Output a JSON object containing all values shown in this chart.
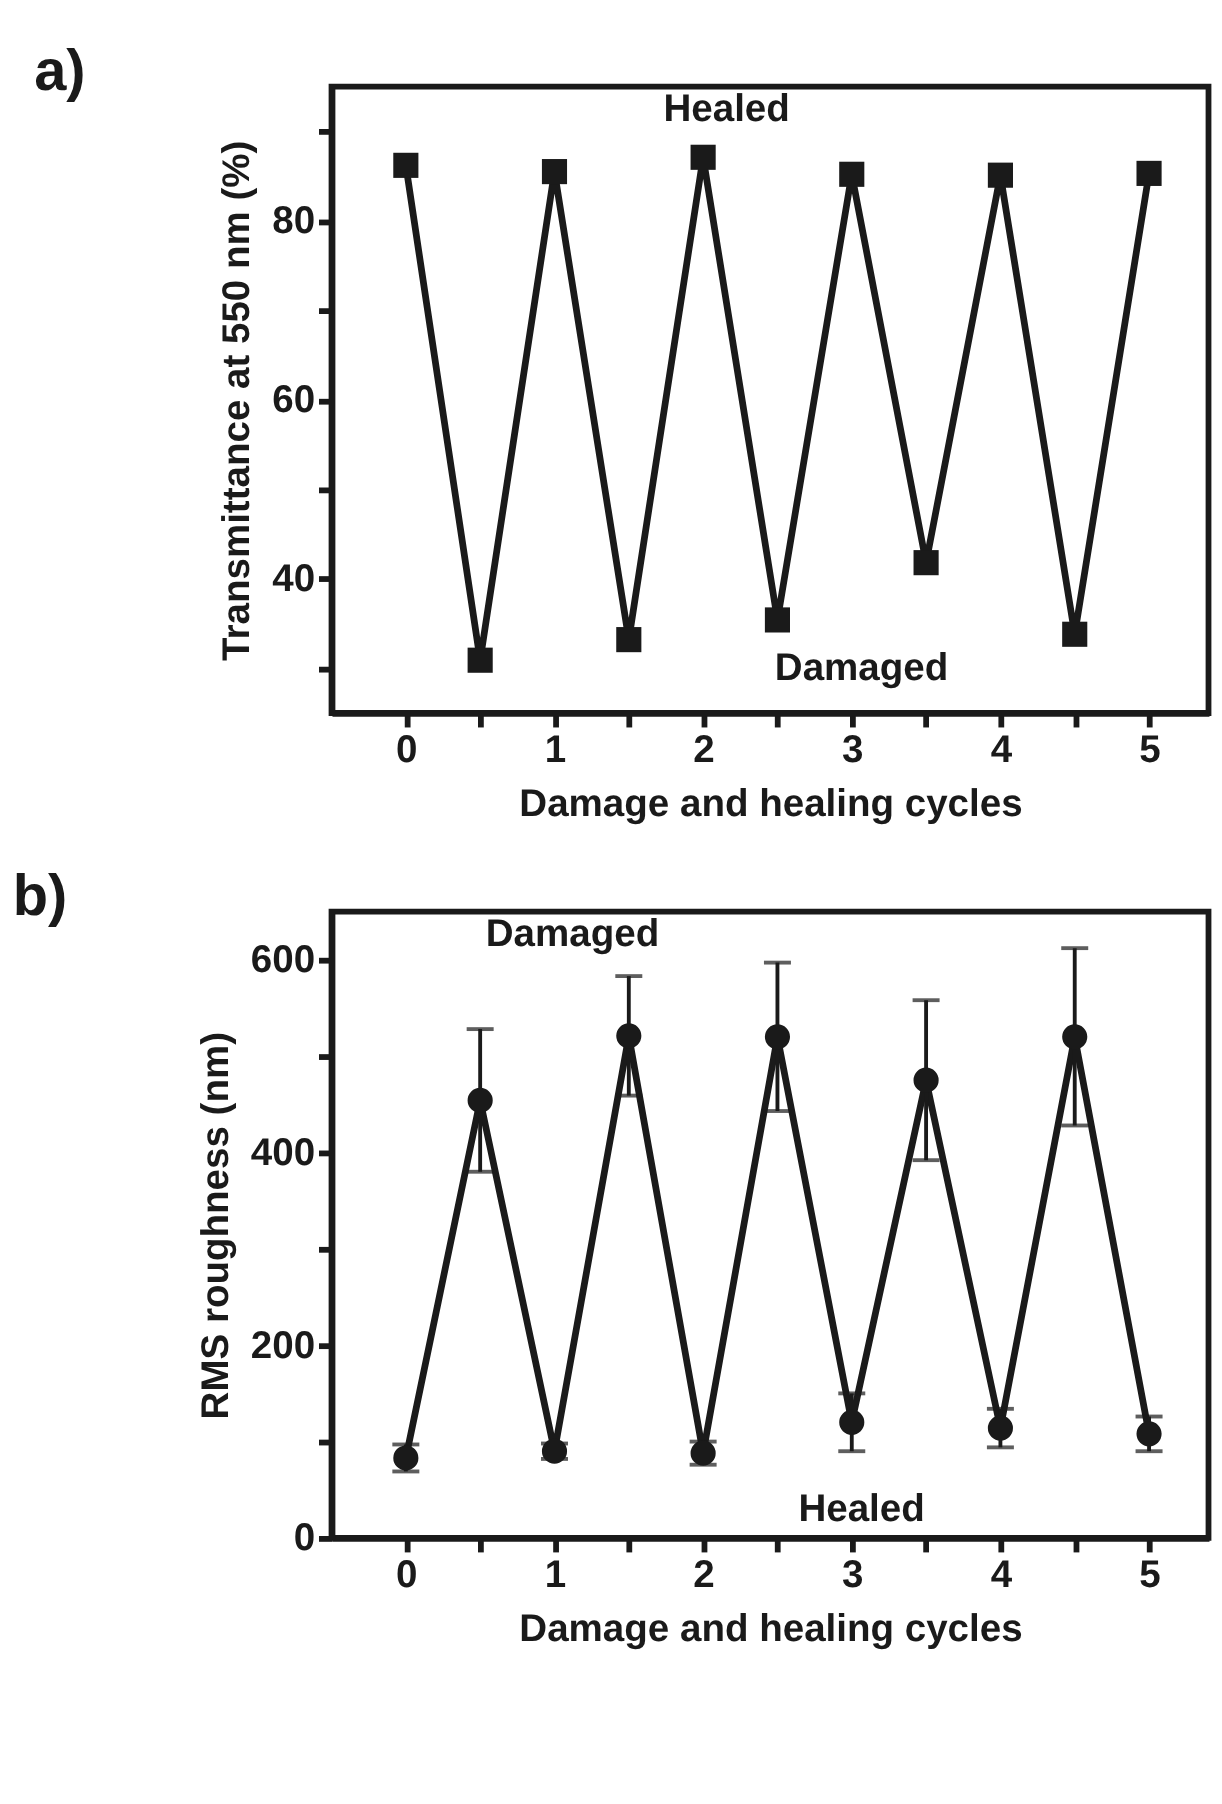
{
  "chart_data": [
    {
      "type": "line",
      "title": "a)",
      "xlabel": "Damage and healing cycles",
      "ylabel": "Transmittance at 550 nm (%)",
      "x": [
        0,
        0.5,
        1,
        1.5,
        2,
        2.5,
        3,
        3.5,
        4,
        4.5,
        5
      ],
      "series": [
        {
          "color": "#1a1a1a",
          "marker": "square",
          "values": [
            86.2,
            30.9,
            85.5,
            33.2,
            87.1,
            35.4,
            85.2,
            41.8,
            85.1,
            33.8,
            85.3
          ]
        }
      ],
      "xlim": [
        -0.5,
        5.4
      ],
      "xticks": [
        0,
        {
          "value": 0.5,
          "label": null
        },
        1,
        {
          "value": 1.5,
          "label": null
        },
        2,
        {
          "value": 2.5,
          "label": null
        },
        3,
        {
          "value": 3.5,
          "label": null
        },
        4,
        {
          "value": 4.5,
          "label": null
        },
        5
      ],
      "ylim": [
        25,
        95
      ],
      "yticks": [
        {
          "value": 30,
          "label": null
        },
        40,
        {
          "value": 50,
          "label": null
        },
        60,
        {
          "value": 70,
          "label": null
        },
        80,
        {
          "value": 90,
          "label": null
        }
      ],
      "annotations": [
        "Healed",
        "Damaged"
      ],
      "grid": false
    },
    {
      "type": "line",
      "title": "b)",
      "xlabel": "Damage and healing cycles",
      "ylabel": "RMS roughness (nm)",
      "x": [
        0,
        0.5,
        1,
        1.5,
        2,
        2.5,
        3,
        3.5,
        4,
        4.5,
        5
      ],
      "series": [
        {
          "color": "#1a1a1a",
          "marker": "circle",
          "values": [
            83,
            454,
            90,
            521,
            88,
            520,
            120,
            475,
            114,
            520,
            108
          ],
          "errors": [
            14,
            74,
            8,
            62,
            12,
            77,
            30,
            83,
            20,
            92,
            18
          ]
        }
      ],
      "xlim": [
        -0.5,
        5.4
      ],
      "xticks": [
        0,
        {
          "value": 0.5,
          "label": null
        },
        1,
        {
          "value": 1.5,
          "label": null
        },
        2,
        {
          "value": 2.5,
          "label": null
        },
        3,
        {
          "value": 3.5,
          "label": null
        },
        4,
        {
          "value": 4.5,
          "label": null
        },
        5
      ],
      "ylim": [
        0,
        650
      ],
      "yticks": [
        0,
        {
          "value": 100,
          "label": null
        },
        200,
        {
          "value": 300,
          "label": null
        },
        400,
        {
          "value": 500,
          "label": null
        },
        600
      ],
      "annotations": [
        "Damaged",
        "Healed"
      ],
      "grid": false
    }
  ]
}
